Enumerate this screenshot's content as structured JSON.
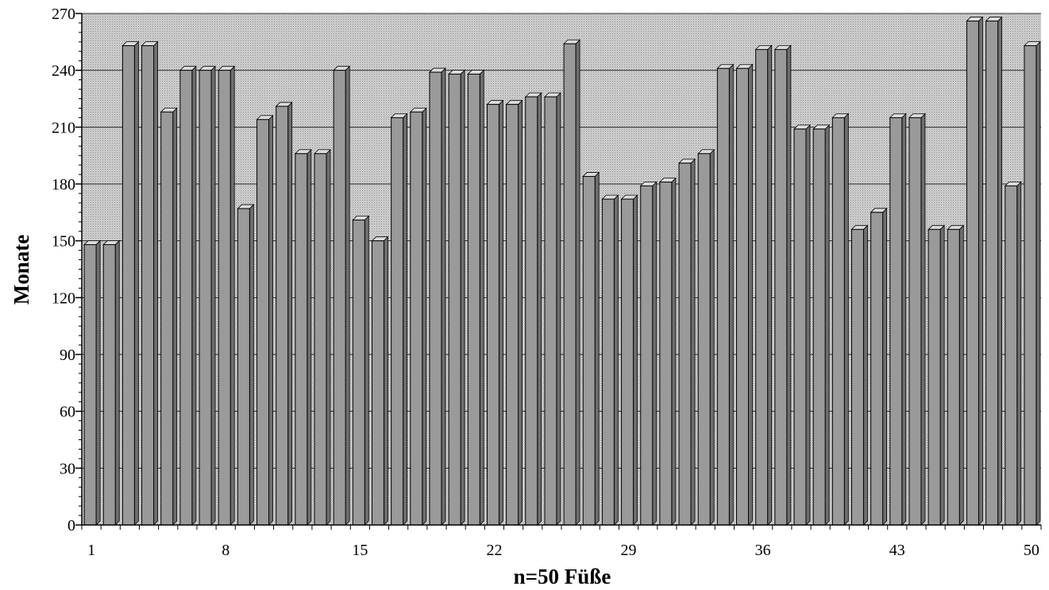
{
  "chart_data": {
    "type": "bar",
    "title": "",
    "xlabel": "n=50 Füße",
    "ylabel": "Monate",
    "ylim": [
      0,
      270
    ],
    "y_ticks": [
      "0",
      "30",
      "60",
      "90",
      "120",
      "150",
      "180",
      "210",
      "240",
      "270"
    ],
    "x_tick_labels": [
      "1",
      "8",
      "15",
      "22",
      "29",
      "36",
      "43",
      "50"
    ],
    "x_tick_positions": [
      1,
      8,
      15,
      22,
      29,
      36,
      43,
      50
    ],
    "categories": [
      "1",
      "2",
      "3",
      "4",
      "5",
      "6",
      "7",
      "8",
      "9",
      "10",
      "11",
      "12",
      "13",
      "14",
      "15",
      "16",
      "17",
      "18",
      "19",
      "20",
      "21",
      "22",
      "23",
      "24",
      "25",
      "26",
      "27",
      "28",
      "29",
      "30",
      "31",
      "32",
      "33",
      "34",
      "35",
      "36",
      "37",
      "38",
      "39",
      "40",
      "41",
      "42",
      "43",
      "44",
      "45",
      "46",
      "47",
      "48",
      "49",
      "50"
    ],
    "values": [
      148,
      148,
      253,
      253,
      218,
      240,
      240,
      240,
      167,
      214,
      221,
      196,
      196,
      240,
      161,
      150,
      215,
      218,
      239,
      238,
      238,
      222,
      222,
      226,
      226,
      254,
      184,
      172,
      172,
      179,
      181,
      191,
      196,
      241,
      241,
      251,
      251,
      209,
      209,
      215,
      156,
      165,
      215,
      215,
      156,
      156,
      266,
      266,
      179,
      253
    ],
    "grid": true,
    "legend": "none",
    "colors": {
      "plot_background": "#c4c4c4",
      "bar_front": "#9a9a9a",
      "bar_top": "#dcdcdc",
      "bar_side": "#6e6e6e",
      "grid": "#2a2a2a"
    }
  }
}
